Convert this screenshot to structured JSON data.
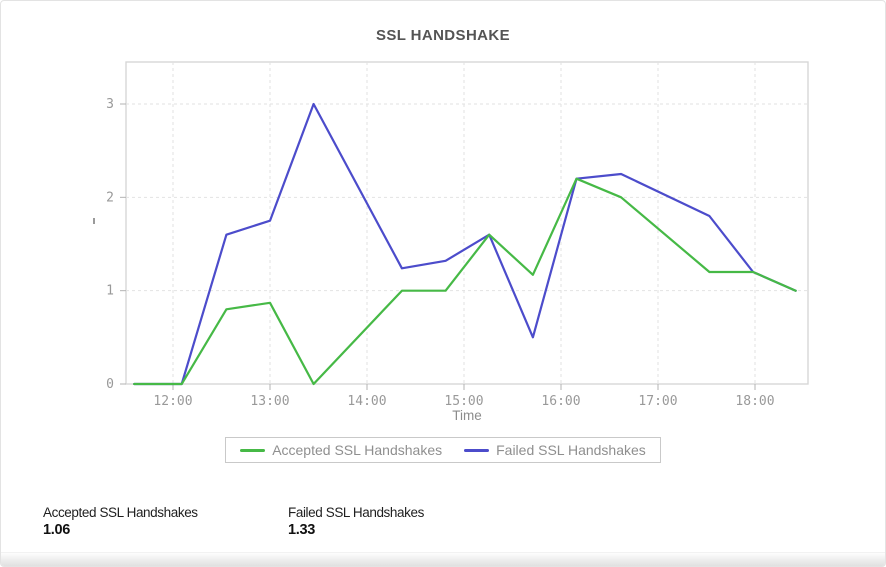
{
  "chart_data": {
    "type": "line",
    "title": "SSL HANDSHAKE",
    "xlabel": "Time",
    "ylabel": "",
    "x_tick_labels": [
      "12:00",
      "13:00",
      "14:00",
      "15:00",
      "16:00",
      "17:00",
      "18:00"
    ],
    "x_tick_hours": [
      12,
      13,
      14,
      15,
      16,
      17,
      18
    ],
    "y_tick_labels": [
      "0",
      "1",
      "2",
      "3"
    ],
    "y_ticks": [
      0,
      1,
      2,
      3
    ],
    "ylim": [
      0,
      3.45
    ],
    "xlim_hours": [
      11.51,
      18.56
    ],
    "grid": true,
    "legend_position": "bottom",
    "x_times": [
      "11:36",
      "12:05",
      "12:33",
      "13:00",
      "13:27",
      "14:22",
      "14:49",
      "15:16",
      "15:43",
      "16:10",
      "16:37",
      "17:32",
      "17:59",
      "18:25"
    ],
    "x_hours": [
      11.6,
      12.09,
      12.55,
      13.0,
      13.45,
      14.36,
      14.81,
      15.26,
      15.71,
      16.16,
      16.62,
      17.53,
      17.98,
      18.42
    ],
    "series": [
      {
        "name": "Accepted SSL Handshakes",
        "color": "#46b946",
        "values": [
          0,
          0,
          0.8,
          0.87,
          0,
          1.0,
          1.0,
          1.6,
          1.17,
          2.2,
          2.0,
          1.2,
          1.2,
          1.0
        ]
      },
      {
        "name": "Failed SSL Handshakes",
        "color": "#4c4ccb",
        "values": [
          0,
          0,
          1.6,
          1.75,
          3.0,
          1.24,
          1.32,
          1.6,
          0.5,
          2.2,
          2.25,
          1.8,
          1.2,
          1.0
        ]
      }
    ],
    "summary": [
      {
        "label": "Accepted SSL Handshakes",
        "value": "1.06"
      },
      {
        "label": "Failed SSL Handshakes",
        "value": "1.33"
      }
    ],
    "colors": {
      "grid": "#e2e2e2",
      "plot_border": "#d7d7d7",
      "tick": "#b3b3b3",
      "tick_label": "#999999",
      "axis_title": "#8c8c8c"
    }
  }
}
